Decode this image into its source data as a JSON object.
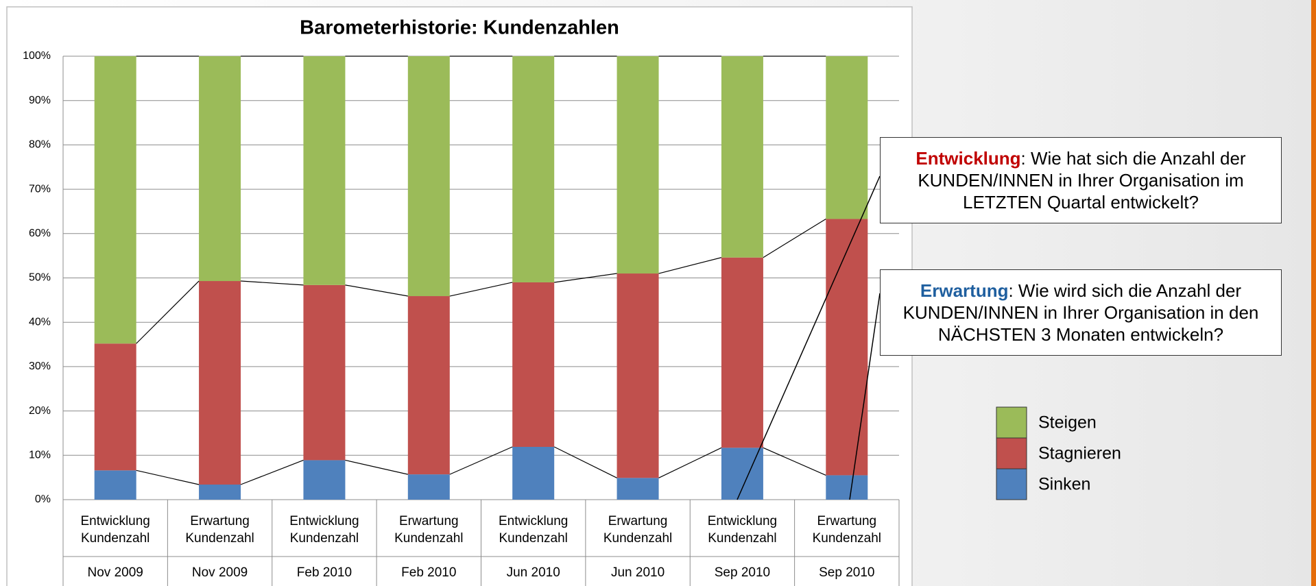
{
  "chart_data": {
    "type": "stacked_bar",
    "title": "Barometerhistorie: Kundenzahlen",
    "categories": [
      [
        "Entwicklung",
        "Kundenzahl"
      ],
      [
        "Erwartung",
        "Kundenzahl"
      ],
      [
        "Entwicklung",
        "Kundenzahl"
      ],
      [
        "Erwartung",
        "Kundenzahl"
      ],
      [
        "Entwicklung",
        "Kundenzahl"
      ],
      [
        "Erwartung",
        "Kundenzahl"
      ],
      [
        "Entwicklung",
        "Kundenzahl"
      ],
      [
        "Erwartung",
        "Kundenzahl"
      ]
    ],
    "periods": [
      "Nov 2009",
      "Nov 2009",
      "Feb 2010",
      "Feb 2010",
      "Jun 2010",
      "Jun 2010",
      "Sep 2010",
      "Sep 2010"
    ],
    "series": [
      {
        "name": "Sinken",
        "color": "#4f81bd",
        "values": [
          6.6,
          3.4,
          8.9,
          5.7,
          11.9,
          4.9,
          11.7,
          5.5
        ]
      },
      {
        "name": "Stagnieren",
        "color": "#c0504d",
        "values": [
          28.6,
          45.9,
          39.5,
          40.2,
          37.1,
          46.1,
          42.9,
          57.8
        ]
      },
      {
        "name": "Steigen",
        "color": "#9bbb59",
        "values": [
          64.8,
          50.7,
          51.6,
          54.1,
          51.0,
          49.0,
          45.4,
          36.7
        ]
      }
    ],
    "ylim": [
      0,
      100
    ],
    "yticks": [
      {
        "value": 0,
        "label": "0%"
      },
      {
        "value": 10,
        "label": "10%"
      },
      {
        "value": 20,
        "label": "20%"
      },
      {
        "value": 30,
        "label": "30%"
      },
      {
        "value": 40,
        "label": "40%"
      },
      {
        "value": 50,
        "label": "50%"
      },
      {
        "value": 60,
        "label": "60%"
      },
      {
        "value": 70,
        "label": "70%"
      },
      {
        "value": 80,
        "label": "80%"
      },
      {
        "value": 90,
        "label": "90%"
      },
      {
        "value": 100,
        "label": "100%"
      }
    ],
    "grid": true,
    "series_lines": true,
    "annotations": [
      {
        "keyword": "Entwicklung",
        "color": "#c00000",
        "text": ": Wie hat sich die Anzahl der KUNDEN/INNEN in Ihrer Organisation im LETZTEN Quartal entwickelt?"
      },
      {
        "keyword": "Erwartung",
        "color": "#1f5f9f",
        "text": ": Wie wird sich die Anzahl der KUNDEN/INNEN in Ihrer Organisation in den NÄCHSTEN 3 Monaten entwickeln?"
      }
    ]
  }
}
